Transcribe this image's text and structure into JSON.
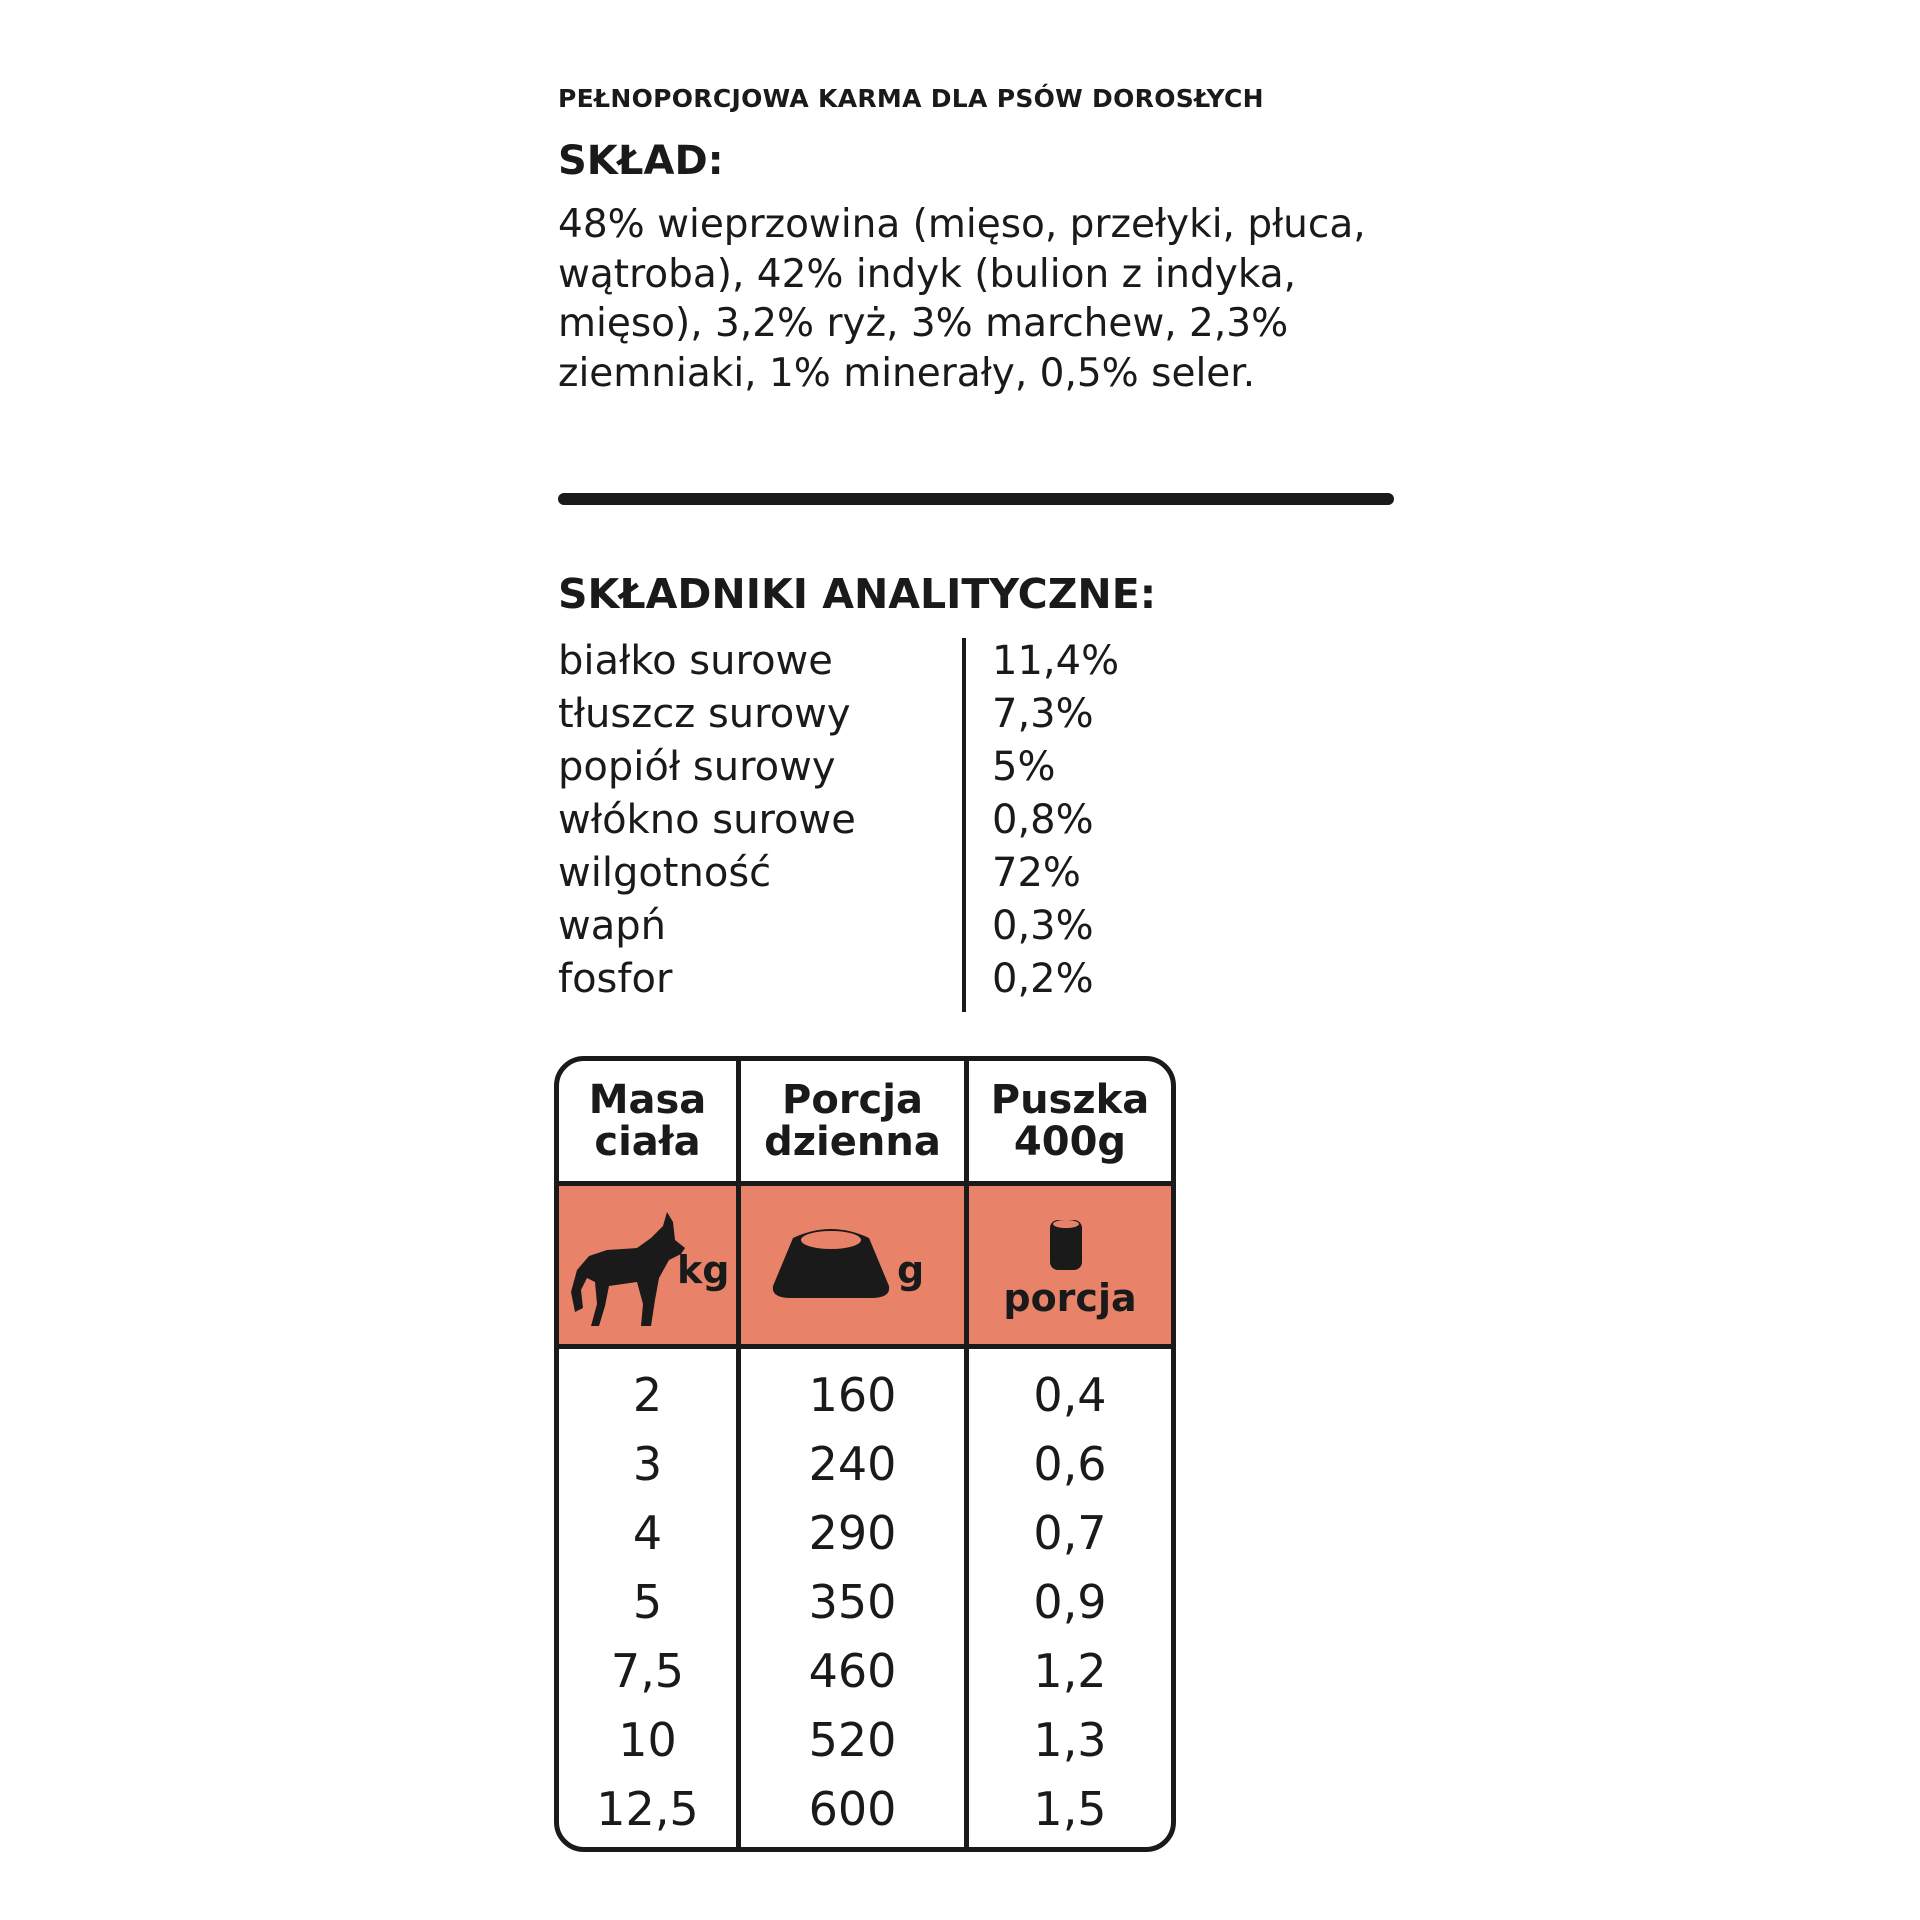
{
  "subtitle": "PEŁNOPORCJOWA KARMA DLA PSÓW DOROSŁYCH",
  "composition": {
    "title": "SKŁAD:",
    "text": "48% wieprzowina (mięso, przełyki, płuca, wątroba), 42% indyk (bulion z indyka, mięso), 3,2% ryż, 3% marchew, 2,3% ziemniaki, 1% minerały, 0,5% seler."
  },
  "analysis": {
    "title": "SKŁADNIKI ANALITYCZNE:",
    "rows": [
      {
        "name": "białko surowe",
        "value": "11,4%"
      },
      {
        "name": "tłuszcz surowy",
        "value": "7,3%"
      },
      {
        "name": "popiół surowy",
        "value": "5%"
      },
      {
        "name": "włókno surowe",
        "value": "0,8%"
      },
      {
        "name": "wilgotność",
        "value": "72%"
      },
      {
        "name": "wapń",
        "value": "0,3%"
      },
      {
        "name": "fosfor",
        "value": "0,2%"
      }
    ]
  },
  "feeding_table": {
    "accent_color": "#e8836a",
    "columns": [
      {
        "header_line1": "Masa",
        "header_line2": "ciała",
        "icon": "dog-icon",
        "unit": "kg"
      },
      {
        "header_line1": "Porcja",
        "header_line2": "dzienna",
        "icon": "bowl-icon",
        "unit": "g"
      },
      {
        "header_line1": "Puszka",
        "header_line2": "400g",
        "icon": "can-icon",
        "unit": "porcja"
      }
    ],
    "rows": [
      [
        "2",
        "160",
        "0,4"
      ],
      [
        "3",
        "240",
        "0,6"
      ],
      [
        "4",
        "290",
        "0,7"
      ],
      [
        "5",
        "350",
        "0,9"
      ],
      [
        "7,5",
        "460",
        "1,2"
      ],
      [
        "10",
        "520",
        "1,3"
      ],
      [
        "12,5",
        "600",
        "1,5"
      ]
    ]
  }
}
